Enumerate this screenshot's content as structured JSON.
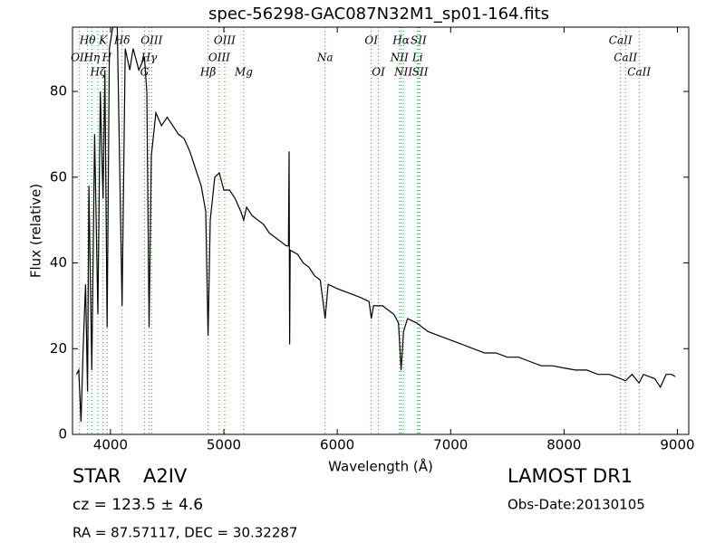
{
  "chart_data": {
    "type": "line",
    "title": "spec-56298-GAC087N32M1_sp01-164.fits",
    "xlabel": "Wavelength (Å)",
    "ylabel": "Flux (relative)",
    "xlim": [
      3665,
      9100
    ],
    "ylim": [
      0,
      95
    ],
    "xticks": [
      4000,
      5000,
      6000,
      7000,
      8000,
      9000
    ],
    "yticks": [
      0,
      20,
      40,
      60,
      80
    ],
    "color": "#000000",
    "line_color": "#2ca02c",
    "x": [
      3700,
      3720,
      3740,
      3760,
      3780,
      3798,
      3810,
      3835,
      3860,
      3889,
      3910,
      3934,
      3950,
      3970,
      3990,
      4020,
      4060,
      4102,
      4130,
      4170,
      4200,
      4250,
      4300,
      4320,
      4340,
      4360,
      4400,
      4450,
      4500,
      4550,
      4600,
      4650,
      4700,
      4750,
      4800,
      4840,
      4861,
      4880,
      4920,
      4960,
      5000,
      5050,
      5100,
      5150,
      5175,
      5200,
      5250,
      5300,
      5350,
      5400,
      5450,
      5500,
      5550,
      5570,
      5575,
      5580,
      5585,
      5650,
      5700,
      5750,
      5800,
      5850,
      5893,
      5920,
      6000,
      6100,
      6200,
      6280,
      6300,
      6320,
      6400,
      6450,
      6500,
      6540,
      6563,
      6585,
      6620,
      6700,
      6800,
      6900,
      7000,
      7100,
      7200,
      7300,
      7400,
      7500,
      7600,
      7700,
      7800,
      7900,
      8000,
      8100,
      8200,
      8300,
      8400,
      8498,
      8542,
      8600,
      8662,
      8700,
      8800,
      8850,
      8900,
      8950,
      8980
    ],
    "values": [
      14,
      15,
      3,
      21,
      35,
      10,
      58,
      15,
      70,
      28,
      80,
      55,
      85,
      25,
      90,
      95,
      95,
      30,
      90,
      85,
      90,
      85,
      88,
      80,
      25,
      65,
      75,
      72,
      74,
      72,
      70,
      69,
      66,
      62,
      58,
      52,
      23,
      50,
      60,
      61,
      57,
      57,
      55,
      52,
      50,
      53,
      51,
      50,
      49,
      47,
      46,
      45,
      44,
      44,
      66,
      21,
      43,
      42,
      40,
      39,
      37,
      36,
      27,
      35,
      34,
      33,
      32,
      31,
      27,
      30,
      30,
      29,
      28,
      26,
      15,
      24,
      27,
      26,
      24,
      23,
      22,
      21,
      20,
      19,
      19,
      18,
      18,
      17,
      16,
      16,
      15.5,
      15,
      15,
      14,
      14,
      13,
      12.5,
      14,
      12,
      14,
      13,
      11,
      14,
      14,
      13.5
    ],
    "line_rows": [
      [
        {
          "label": "Hθ",
          "wavelength": 3798
        },
        {
          "label": "K",
          "wavelength": 3934
        },
        {
          "label": "Hδ",
          "wavelength": 4102
        },
        {
          "label": "OIII",
          "wavelength": 4363
        },
        {
          "label": "OIII",
          "wavelength": 5007
        },
        {
          "label": "OI",
          "wavelength": 6300
        },
        {
          "label": "Hα",
          "wavelength": 6563
        },
        {
          "label": "SII",
          "wavelength": 6717
        },
        {
          "label": "CaII",
          "wavelength": 8498
        }
      ],
      [
        {
          "label": "OII",
          "wavelength": 3727
        },
        {
          "label": "Hη",
          "wavelength": 3835
        },
        {
          "label": "H",
          "wavelength": 3969
        },
        {
          "label": "Hγ",
          "wavelength": 4340
        },
        {
          "label": "OIII",
          "wavelength": 4959
        },
        {
          "label": "Na",
          "wavelength": 5893
        },
        {
          "label": "NII",
          "wavelength": 6548
        },
        {
          "label": "Li",
          "wavelength": 6708
        },
        {
          "label": "CaII",
          "wavelength": 8542
        }
      ],
      [
        {
          "label": "Hζ",
          "wavelength": 3889
        },
        {
          "label": "G",
          "wavelength": 4300
        },
        {
          "label": "Hβ",
          "wavelength": 4861
        },
        {
          "label": "Mg",
          "wavelength": 5175
        },
        {
          "label": "OI",
          "wavelength": 6363
        },
        {
          "label": "NII",
          "wavelength": 6583
        },
        {
          "label": "SII",
          "wavelength": 6731
        },
        {
          "label": "CaII",
          "wavelength": 8662
        }
      ]
    ],
    "annotations": {
      "object": "STAR",
      "subclass": "A2IV",
      "redshift": "cz = 123.5 ± 4.6",
      "coords": "RA = 87.57117, DEC = 30.32287",
      "survey": "LAMOST DR1",
      "obs_date": "Obs-Date:20130105"
    }
  }
}
